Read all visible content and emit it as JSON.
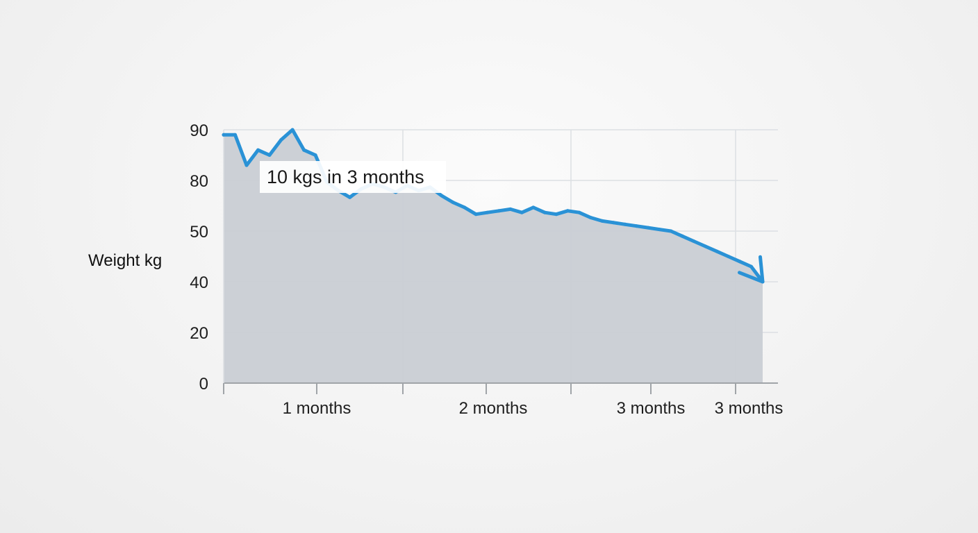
{
  "chart_data": {
    "type": "area",
    "title": "",
    "ylabel": "Weight kg",
    "xlabel": "",
    "y_ticks": [
      0,
      20,
      40,
      50,
      80,
      90
    ],
    "x_tick_labels": [
      "1 months",
      "2 months",
      "3 months",
      "3 months"
    ],
    "annotation": "10 kgs in 3 months",
    "grid": true,
    "series": [
      {
        "values": [
          89,
          89,
          83,
          86,
          85,
          88,
          90,
          86,
          85,
          79,
          74,
          70,
          75,
          78,
          76,
          73,
          77,
          74,
          76,
          71,
          67,
          64,
          60,
          61,
          62,
          63,
          61,
          64,
          61,
          60,
          62,
          61,
          58,
          56,
          55,
          54,
          53,
          52,
          51,
          50,
          49,
          48,
          47,
          46,
          45,
          44,
          43,
          40
        ]
      }
    ],
    "colors": {
      "line": "#2a92d6",
      "fill": "#c9ced4",
      "grid": "#dcdfe3",
      "axis": "#a0a4a8",
      "annotation_bg": "#ffffff"
    }
  }
}
